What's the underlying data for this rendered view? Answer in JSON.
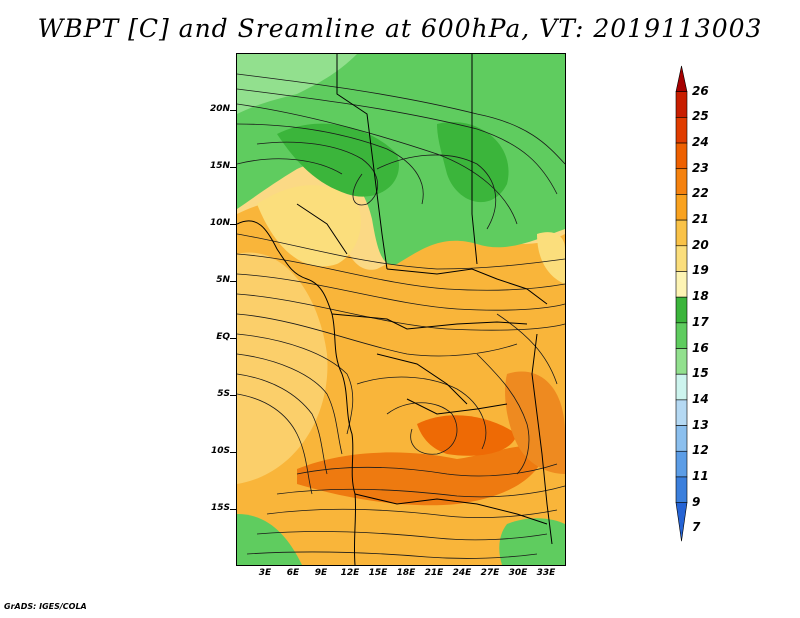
{
  "title": "WBPT [C] and Sreamline at 600hPa, VT: 2019113003",
  "credit": "GrADS: IGES/COLA",
  "map": {
    "lat_labels": [
      "20N",
      "15N",
      "10N",
      "5N",
      "EQ",
      "5S",
      "10S",
      "15S"
    ],
    "lon_labels": [
      "3E",
      "6E",
      "9E",
      "12E",
      "15E",
      "18E",
      "21E",
      "24E",
      "27E",
      "30E",
      "33E"
    ]
  },
  "colorbar": {
    "labels": [
      "26",
      "25",
      "24",
      "23",
      "22",
      "21",
      "20",
      "19",
      "18",
      "17",
      "16",
      "15",
      "14",
      "13",
      "12",
      "11",
      "9",
      "7"
    ],
    "colors": [
      "#a50000",
      "#c81e00",
      "#e03c00",
      "#ee6000",
      "#f5820f",
      "#f9a21f",
      "#f9c248",
      "#fbde7c",
      "#fdf4b4",
      "#3bb53b",
      "#5fcc5f",
      "#92e08e",
      "#cdf4ee",
      "#b5d9f3",
      "#8bbfee",
      "#5c9de6",
      "#3b7fdc",
      "#2563d4"
    ]
  }
}
